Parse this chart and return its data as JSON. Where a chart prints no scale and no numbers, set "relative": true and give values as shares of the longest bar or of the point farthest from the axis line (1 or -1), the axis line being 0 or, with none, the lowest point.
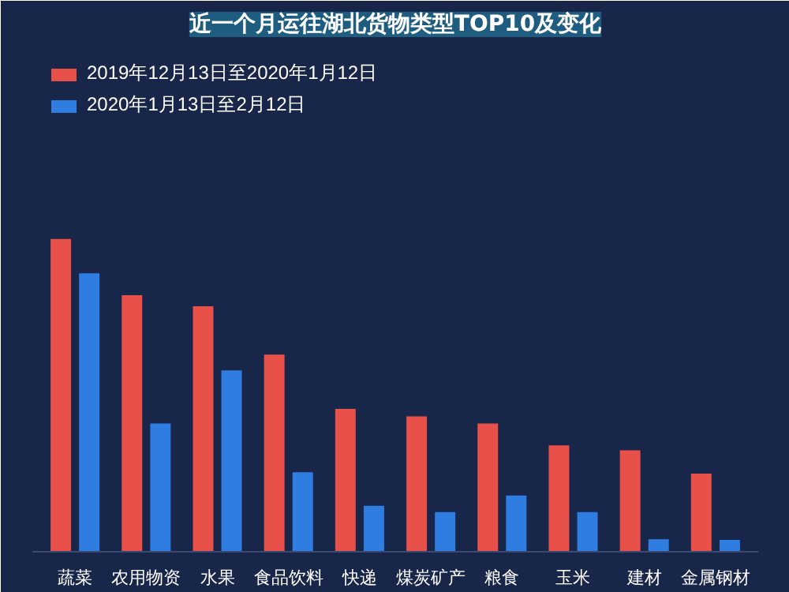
{
  "chart_data": {
    "type": "bar",
    "title": "近一个月运往湖北货物类型TOP10及变化",
    "relative": true,
    "categories": [
      "蔬菜",
      "农用物资",
      "水果",
      "食品饮料",
      "快递",
      "煤炭矿产",
      "粮食",
      "玉米",
      "建材",
      "金属钢材"
    ],
    "series": [
      {
        "name": "2019年12月13日至2020年1月12日",
        "color": "#e8504a",
        "values": [
          1,
          0.82,
          0.785,
          0.63,
          0.457,
          0.433,
          0.41,
          0.34,
          0.324,
          0.25
        ]
      },
      {
        "name": "2020年1月13日至2月12日",
        "color": "#2f7de1",
        "values": [
          0.89,
          0.41,
          0.58,
          0.254,
          0.147,
          0.127,
          0.18,
          0.127,
          0.04,
          0.038
        ]
      }
    ],
    "legend": "top left",
    "grid": false
  }
}
